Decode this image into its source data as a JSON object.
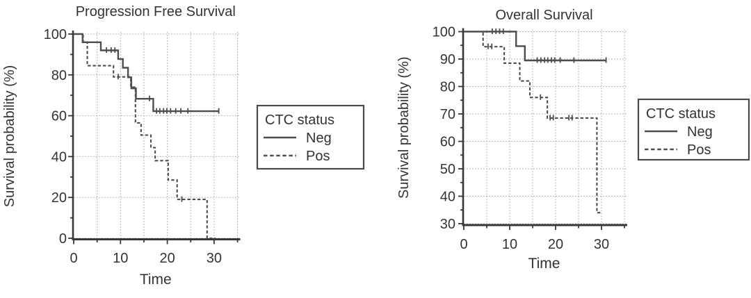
{
  "figure": {
    "background": "#ffffff"
  },
  "colors": {
    "curve": "#4d4d4d",
    "grid": "#a6a6a6",
    "axis": "#383838",
    "text": "#333333",
    "legendBorder": "#4a4a4a"
  },
  "chart_data": [
    {
      "type": "line",
      "variant": "kaplan_meier_step",
      "title": "Progression Free Survival",
      "xlabel": "Time",
      "ylabel": "Survival probability (%)",
      "xlim": [
        0,
        35
      ],
      "ylim": [
        0,
        100
      ],
      "xticks": [
        0,
        10,
        20,
        30
      ],
      "xgrid": [
        5,
        10,
        15,
        20,
        25,
        30,
        35
      ],
      "yticks": [
        0,
        20,
        40,
        60,
        80,
        100
      ],
      "grid": "dotted",
      "legend": {
        "title": "CTC status",
        "position": "right",
        "entries": [
          {
            "label": "Neg",
            "line": "solid"
          },
          {
            "label": "Pos",
            "line": "dashed"
          }
        ]
      },
      "series": [
        {
          "name": "Neg",
          "line": "solid",
          "steps": [
            [
              0,
              100
            ],
            [
              1.9,
              96
            ],
            [
              5.8,
              92
            ],
            [
              9.5,
              87.8
            ],
            [
              10.5,
              83.5
            ],
            [
              11.6,
              78.8
            ],
            [
              12.3,
              73.4
            ],
            [
              13.3,
              68.3
            ],
            [
              17,
              62.2
            ]
          ],
          "end": 31,
          "censors": [
            [
              7,
              92
            ],
            [
              8,
              92
            ],
            [
              8.8,
              92
            ],
            [
              16.2,
              68.3
            ],
            [
              17.7,
              62.2
            ],
            [
              18.4,
              62.2
            ],
            [
              19.2,
              62.2
            ],
            [
              19.9,
              62.2
            ],
            [
              20.7,
              62.2
            ],
            [
              21.8,
              62.2
            ],
            [
              22.9,
              62.2
            ],
            [
              24.4,
              62.2
            ],
            [
              31,
              62.2
            ]
          ]
        },
        {
          "name": "Pos",
          "line": "dashed",
          "steps": [
            [
              0,
              100
            ],
            [
              2,
              96
            ],
            [
              2.9,
              84.5
            ],
            [
              8.5,
              79
            ],
            [
              12.2,
              74
            ],
            [
              13.2,
              56.5
            ],
            [
              14.4,
              50.5
            ],
            [
              16.5,
              44.4
            ],
            [
              17.4,
              38
            ],
            [
              20.2,
              28.5
            ],
            [
              22.1,
              19
            ],
            [
              28.5,
              0
            ]
          ],
          "end": 30.3,
          "censors": [
            [
              9.5,
              79
            ],
            [
              23.1,
              19
            ]
          ]
        }
      ]
    },
    {
      "type": "line",
      "variant": "kaplan_meier_step",
      "title": "Overall Survival",
      "xlabel": "Time",
      "ylabel": "Survival probability (%)",
      "xlim": [
        0,
        35
      ],
      "ylim": [
        30,
        100
      ],
      "xticks": [
        0,
        10,
        20,
        30
      ],
      "xgrid": [
        5,
        10,
        15,
        20,
        25,
        30,
        35
      ],
      "yticks": [
        30,
        40,
        50,
        60,
        70,
        80,
        90,
        100
      ],
      "grid": "dotted",
      "legend": {
        "title": "CTC status",
        "position": "right",
        "entries": [
          {
            "label": "Neg",
            "line": "solid"
          },
          {
            "label": "Pos",
            "line": "dashed"
          }
        ]
      },
      "series": [
        {
          "name": "Neg",
          "line": "solid",
          "steps": [
            [
              0,
              100
            ],
            [
              11.4,
              94.7
            ],
            [
              13.3,
              89.5
            ]
          ],
          "end": 31,
          "censors": [
            [
              6.2,
              100
            ],
            [
              7,
              100
            ],
            [
              7.8,
              100
            ],
            [
              8.6,
              100
            ],
            [
              16,
              89.5
            ],
            [
              16.8,
              89.5
            ],
            [
              17.6,
              89.5
            ],
            [
              18.3,
              89.5
            ],
            [
              19.1,
              89.5
            ],
            [
              19.8,
              89.5
            ],
            [
              21,
              89.5
            ],
            [
              24,
              89.5
            ],
            [
              31,
              89.5
            ]
          ]
        },
        {
          "name": "Pos",
          "line": "dashed",
          "steps": [
            [
              0,
              100
            ],
            [
              4.2,
              94.5
            ],
            [
              8.8,
              88.5
            ],
            [
              12.2,
              82
            ],
            [
              14.4,
              76
            ],
            [
              18.2,
              68.5
            ],
            [
              29,
              34
            ]
          ],
          "end": 30,
          "censors": [
            [
              5.3,
              94.5
            ],
            [
              6.1,
              94.5
            ],
            [
              16.7,
              76
            ],
            [
              18.8,
              68.5
            ],
            [
              19.5,
              68.5
            ],
            [
              22.9,
              68.5
            ],
            [
              23.6,
              68.5
            ]
          ]
        }
      ]
    }
  ]
}
